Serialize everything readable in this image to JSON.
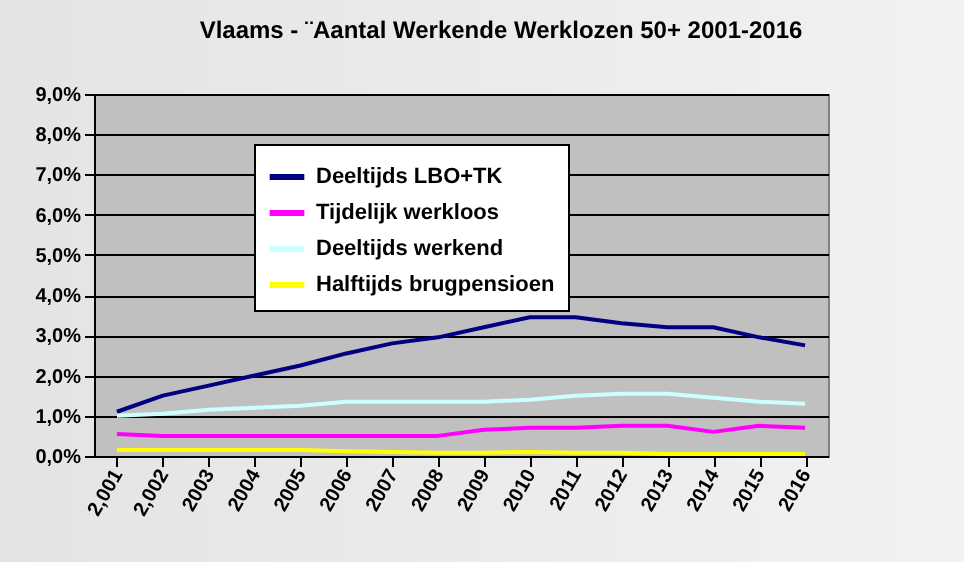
{
  "chart_data": {
    "type": "line",
    "title": "Vlaams - ¨Aantal Werkende Werklozen 50+ 2001-2016",
    "categories": [
      "2,001",
      "2,002",
      "2003",
      "2004",
      "2005",
      "2006",
      "2007",
      "2008",
      "2009",
      "2010",
      "2011",
      "2012",
      "2013",
      "2014",
      "2015",
      "2016"
    ],
    "series": [
      {
        "name": "Deeltijds LBO+TK",
        "color": "#000080",
        "values": [
          1.1,
          1.5,
          1.75,
          2.0,
          2.25,
          2.55,
          2.8,
          2.95,
          3.2,
          3.45,
          3.45,
          3.3,
          3.2,
          3.2,
          2.95,
          2.75
        ]
      },
      {
        "name": "Tijdelijk werkloos",
        "color": "#ff00ff",
        "values": [
          0.55,
          0.5,
          0.5,
          0.5,
          0.5,
          0.5,
          0.5,
          0.5,
          0.65,
          0.7,
          0.7,
          0.75,
          0.75,
          0.6,
          0.75,
          0.7
        ]
      },
      {
        "name": "Deeltijds werkend",
        "color": "#ccffff",
        "values": [
          1.0,
          1.05,
          1.15,
          1.2,
          1.25,
          1.35,
          1.35,
          1.35,
          1.35,
          1.4,
          1.5,
          1.55,
          1.55,
          1.45,
          1.35,
          1.3
        ]
      },
      {
        "name": "Halftijds brugpensioen",
        "color": "#ffff00",
        "values": [
          0.15,
          0.15,
          0.15,
          0.15,
          0.15,
          0.12,
          0.1,
          0.08,
          0.08,
          0.1,
          0.08,
          0.08,
          0.05,
          0.05,
          0.05,
          0.05
        ]
      }
    ],
    "ylim": [
      0,
      9
    ],
    "yticks": [
      {
        "value": 0,
        "label": "0,0%"
      },
      {
        "value": 1,
        "label": "1,0%"
      },
      {
        "value": 2,
        "label": "2,0%"
      },
      {
        "value": 3,
        "label": "3,0%"
      },
      {
        "value": 4,
        "label": "4,0%"
      },
      {
        "value": 5,
        "label": "5,0%"
      },
      {
        "value": 6,
        "label": "6,0%"
      },
      {
        "value": 7,
        "label": "7,0%"
      },
      {
        "value": 8,
        "label": "8,0%"
      },
      {
        "value": 9,
        "label": "9,0%"
      }
    ],
    "grid": "y",
    "legend": "top left",
    "line_style": "solid",
    "marker": "none"
  }
}
